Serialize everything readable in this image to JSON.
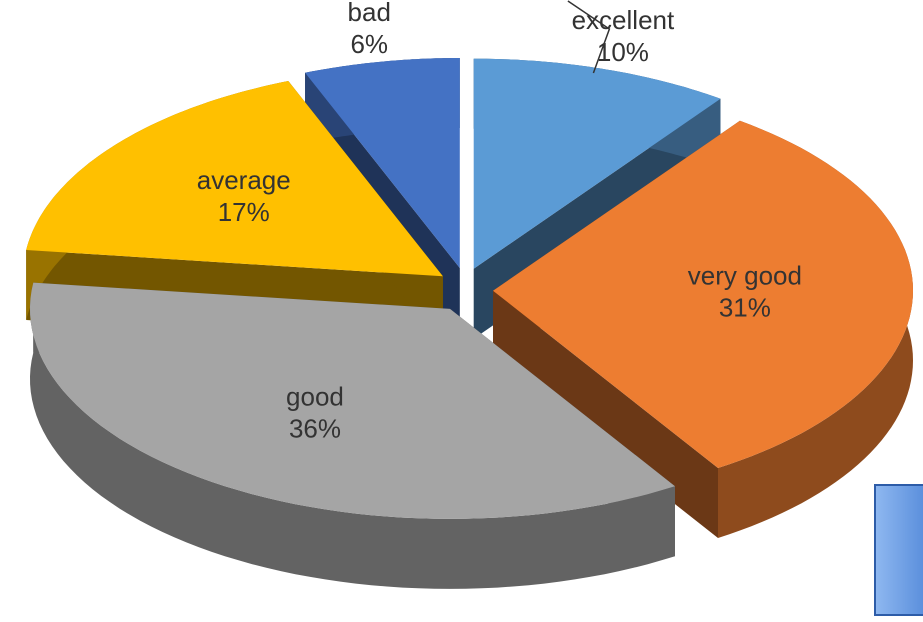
{
  "chart_data": {
    "type": "pie3d",
    "categories": [
      "excellent",
      "very good",
      "good",
      "average",
      "bad"
    ],
    "values": [
      10,
      31,
      36,
      17,
      6
    ],
    "value_labels": [
      "10%",
      "31%",
      "36%",
      "17%",
      "6%"
    ],
    "colors": [
      "#5b9bd5",
      "#ed7d31",
      "#a5a5a5",
      "#ffc000",
      "#4472c4"
    ]
  }
}
